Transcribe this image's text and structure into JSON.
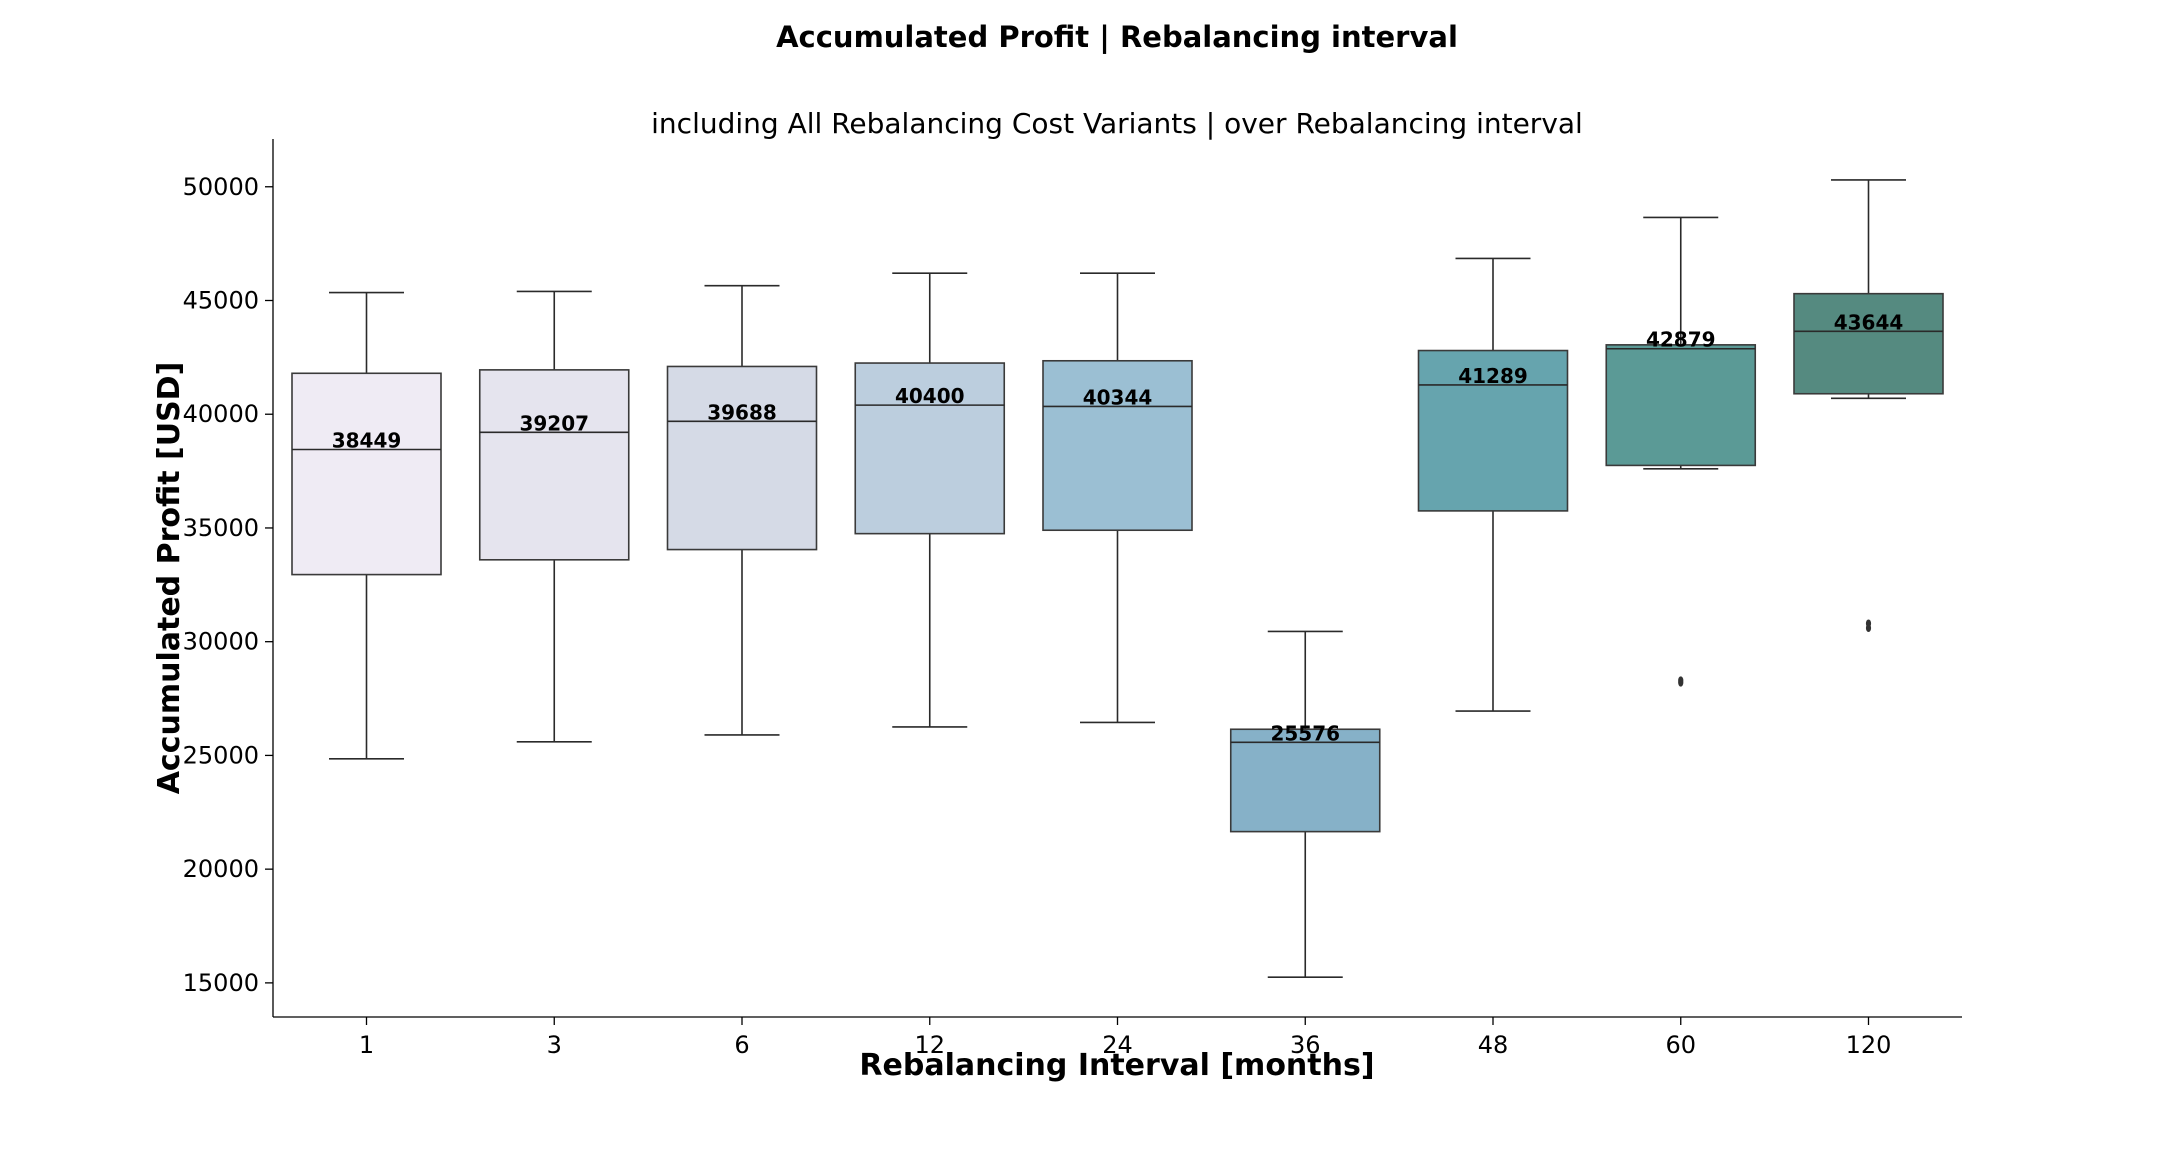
{
  "chart_data": {
    "type": "box",
    "title": "Accumulated Profit | Rebalancing interval",
    "subtitle": "including All Rebalancing Cost Variants | over Rebalancing interval",
    "xlabel": "Rebalancing Interval [months]",
    "ylabel": "Accumulated Profit [USD]",
    "ylim": [
      13500,
      52100
    ],
    "yticks": [
      "15000",
      "20000",
      "25000",
      "30000",
      "35000",
      "40000",
      "45000",
      "50000"
    ],
    "grid": false,
    "categories": [
      "1",
      "3",
      "6",
      "12",
      "24",
      "36",
      "48",
      "60",
      "120"
    ],
    "boxes": [
      {
        "category": "1",
        "whislo": 24850,
        "q1": 32950,
        "median": 38449,
        "q3": 41800,
        "whishi": 45350,
        "median_label": "38449",
        "color": "#efebf4",
        "outliers": []
      },
      {
        "category": "3",
        "whislo": 25600,
        "q1": 33600,
        "median": 39207,
        "q3": 41950,
        "whishi": 45400,
        "median_label": "39207",
        "color": "#e5e4ee",
        "outliers": []
      },
      {
        "category": "6",
        "whislo": 25900,
        "q1": 34050,
        "median": 39688,
        "q3": 42100,
        "whishi": 45650,
        "median_label": "39688",
        "color": "#d5dae6",
        "outliers": []
      },
      {
        "category": "12",
        "whislo": 26250,
        "q1": 34750,
        "median": 40400,
        "q3": 42250,
        "whishi": 46200,
        "median_label": "40400",
        "color": "#bccede",
        "outliers": []
      },
      {
        "category": "24",
        "whislo": 26450,
        "q1": 34900,
        "median": 40344,
        "q3": 42350,
        "whishi": 46200,
        "median_label": "40344",
        "color": "#9bbfd3",
        "outliers": []
      },
      {
        "category": "36",
        "whislo": 15250,
        "q1": 21650,
        "median": 25576,
        "q3": 26150,
        "whishi": 30450,
        "median_label": "25576",
        "color": "#86b1c8",
        "outliers": []
      },
      {
        "category": "48",
        "whislo": 26950,
        "q1": 35750,
        "median": 41289,
        "q3": 42800,
        "whishi": 46850,
        "median_label": "41289",
        "color": "#66a4ae",
        "outliers": []
      },
      {
        "category": "60",
        "whislo": 37600,
        "q1": 37750,
        "median": 42879,
        "q3": 43050,
        "whishi": 48650,
        "median_label": "42879",
        "color": "#5b9a96",
        "outliers": [
          28200,
          28300
        ]
      },
      {
        "category": "120",
        "whislo": 40700,
        "q1": 40900,
        "median": 43644,
        "q3": 45300,
        "whishi": 50300,
        "median_label": "43644",
        "color": "#558a80",
        "outliers": [
          30600,
          30800
        ]
      }
    ]
  }
}
